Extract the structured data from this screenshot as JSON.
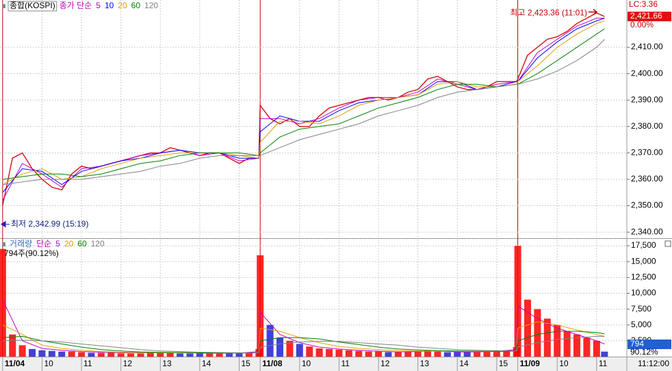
{
  "chart_data": [
    {
      "type": "line",
      "title": "종합(KOSPI)",
      "legend_label": "종가 단순",
      "x": [
        0,
        30,
        60,
        90,
        120,
        150,
        180,
        210,
        240,
        270,
        300,
        330,
        360,
        390,
        392,
        422,
        452,
        482,
        512,
        542,
        572,
        602,
        632,
        662,
        692,
        722,
        752,
        782,
        784,
        814,
        844,
        874,
        904,
        916
      ],
      "series": [
        {
          "name": "5",
          "color": "#c000c0",
          "values": [
            2352,
            2366,
            2362,
            2357,
            2364,
            2365,
            2367,
            2369,
            2370,
            2371,
            2369,
            2370,
            2367,
            2368,
            2383,
            2383,
            2381,
            2383,
            2387,
            2390,
            2391,
            2391,
            2393,
            2398,
            2396,
            2394,
            2396,
            2397,
            2397,
            2408,
            2413,
            2418,
            2421,
            2421
          ]
        },
        {
          "name": "10",
          "color": "#0000ff",
          "values": [
            2355,
            2364,
            2363,
            2358,
            2363,
            2365,
            2367,
            2368,
            2370,
            2371,
            2370,
            2370,
            2368,
            2368,
            2378,
            2384,
            2382,
            2382,
            2386,
            2389,
            2390,
            2391,
            2392,
            2397,
            2397,
            2394,
            2395,
            2397,
            2397,
            2406,
            2412,
            2417,
            2420,
            2421
          ]
        },
        {
          "name": "20",
          "color": "#e0a000",
          "values": [
            2358,
            2362,
            2364,
            2360,
            2361,
            2364,
            2366,
            2368,
            2369,
            2370,
            2370,
            2370,
            2369,
            2368,
            2374,
            2382,
            2382,
            2381,
            2384,
            2388,
            2390,
            2391,
            2392,
            2396,
            2397,
            2395,
            2395,
            2396,
            2397,
            2403,
            2410,
            2415,
            2419,
            2420
          ]
        },
        {
          "name": "60",
          "color": "#008000",
          "values": [
            2360,
            2361,
            2362,
            2362,
            2361,
            2362,
            2364,
            2366,
            2367,
            2369,
            2370,
            2370,
            2370,
            2369,
            2370,
            2376,
            2379,
            2380,
            2381,
            2384,
            2387,
            2389,
            2391,
            2394,
            2396,
            2396,
            2395,
            2396,
            2396,
            2400,
            2405,
            2410,
            2415,
            2417
          ]
        },
        {
          "name": "120",
          "color": "#808080",
          "values": [
            2358,
            2359,
            2360,
            2360,
            2360,
            2361,
            2362,
            2363,
            2365,
            2366,
            2368,
            2369,
            2369,
            2369,
            2369,
            2372,
            2375,
            2377,
            2379,
            2381,
            2384,
            2386,
            2388,
            2391,
            2393,
            2394,
            2395,
            2396,
            2396,
            2398,
            2401,
            2405,
            2410,
            2413
          ]
        }
      ],
      "price": {
        "color": "#d01010",
        "x": [
          0,
          15,
          30,
          45,
          60,
          75,
          90,
          105,
          120,
          135,
          150,
          165,
          180,
          195,
          210,
          225,
          240,
          255,
          270,
          285,
          300,
          315,
          330,
          345,
          360,
          375,
          390,
          392,
          407,
          422,
          437,
          452,
          467,
          482,
          497,
          512,
          527,
          542,
          557,
          572,
          587,
          602,
          617,
          632,
          647,
          662,
          677,
          692,
          707,
          722,
          737,
          752,
          767,
          782,
          784,
          799,
          814,
          829,
          844,
          859,
          874,
          889,
          904,
          916
        ],
        "values": [
          2350,
          2368,
          2370,
          2364,
          2360,
          2357,
          2356,
          2362,
          2365,
          2364,
          2365,
          2366,
          2367,
          2368,
          2369,
          2370,
          2370,
          2372,
          2371,
          2370,
          2369,
          2370,
          2370,
          2368,
          2366,
          2368,
          2368,
          2388,
          2383,
          2381,
          2383,
          2380,
          2380,
          2384,
          2387,
          2388,
          2389,
          2390,
          2391,
          2391,
          2390,
          2391,
          2393,
          2394,
          2398,
          2399,
          2397,
          2395,
          2394,
          2394,
          2395,
          2397,
          2397,
          2397,
          2398,
          2407,
          2410,
          2413,
          2414,
          2416,
          2419,
          2421,
          2423,
          2421.66
        ]
      },
      "ylim": [
        2337.7,
        2427.9
      ],
      "yticks": [
        {
          "value": 2340,
          "label": "2,340.00"
        },
        {
          "value": 2350,
          "label": "2,350.00"
        },
        {
          "value": 2360,
          "label": "2,360.00"
        },
        {
          "value": 2370,
          "label": "2,370.00"
        },
        {
          "value": 2380,
          "label": "2,380.00"
        },
        {
          "value": 2390,
          "label": "2,390.00"
        },
        {
          "value": 2400,
          "label": "2,400.00"
        },
        {
          "value": 2410,
          "label": "2,410.00"
        }
      ],
      "lc_label": "LC:3.36",
      "last": {
        "value": 2421.66,
        "label": "2,421.66"
      },
      "change_label": "0.00%",
      "high": {
        "value": 2423.36,
        "label": "최고 2,423.36 (11:01)"
      },
      "low": {
        "value": 2342.99,
        "label": "최저 2,342.99 (15:19)"
      },
      "grid": true
    },
    {
      "type": "bar",
      "title": "거래량",
      "legend_label": "단순",
      "up_color": "#ff0000",
      "down_color": "#2020d0",
      "values": [
        17000,
        3500,
        1800,
        1200,
        1000,
        900,
        800,
        800,
        700,
        600,
        600,
        600,
        500,
        500,
        500,
        600,
        600,
        700,
        500,
        500,
        500,
        500,
        500,
        500,
        600,
        700,
        1200,
        16000,
        5000,
        3000,
        2500,
        2000,
        1600,
        1300,
        1200,
        1100,
        1000,
        900,
        800,
        800,
        700,
        700,
        800,
        900,
        1000,
        800,
        700,
        700,
        700,
        800,
        800,
        900,
        1000,
        1500,
        17500,
        9000,
        7500,
        6000,
        5000,
        4000,
        3500,
        3000,
        2500,
        794
      ],
      "series": [
        {
          "name": "5",
          "color": "#c000c0",
          "values": [
            9000,
            2500,
            1300,
            1000,
            800,
            700,
            600,
            600,
            600,
            650,
            550,
            520,
            550,
            800,
            7000,
            3500,
            2200,
            1500,
            1200,
            1000,
            850,
            750,
            800,
            900,
            750,
            720,
            850,
            1100,
            8000,
            6000,
            4500,
            3500,
            2500,
            2000
          ]
        },
        {
          "name": "20",
          "color": "#e0a000",
          "values": [
            5000,
            3500,
            1800,
            1300,
            1000,
            800,
            700,
            650,
            600,
            620,
            580,
            540,
            540,
            620,
            4500,
            4000,
            3000,
            2200,
            1600,
            1300,
            1100,
            950,
            880,
            860,
            820,
            780,
            800,
            900,
            4500,
            5500,
            5000,
            4200,
            3500,
            3200
          ]
        },
        {
          "name": "60",
          "color": "#008000",
          "values": [
            3000,
            3200,
            2500,
            2000,
            1500,
            1100,
            900,
            750,
            680,
            640,
            610,
            580,
            560,
            590,
            2500,
            3000,
            3000,
            2800,
            2300,
            1900,
            1500,
            1200,
            1050,
            950,
            900,
            850,
            830,
            850,
            2500,
            3500,
            4000,
            4000,
            3800,
            3600
          ]
        },
        {
          "name": "120",
          "color": "#808080",
          "values": [
            2500,
            2600,
            2500,
            2300,
            2000,
            1700,
            1400,
            1100,
            900,
            800,
            700,
            650,
            600,
            600,
            1500,
            2000,
            2300,
            2400,
            2400,
            2200,
            2000,
            1800,
            1500,
            1300,
            1100,
            1000,
            950,
            900,
            1500,
            2200,
            2700,
            3000,
            3200,
            3200
          ]
        }
      ],
      "ylim": [
        0,
        18480
      ],
      "yticks": [
        {
          "value": 2500,
          "label": "2,500"
        },
        {
          "value": 5000,
          "label": "5,000"
        },
        {
          "value": 7500,
          "label": "7,500"
        },
        {
          "value": 10000,
          "label": "10,000"
        },
        {
          "value": 12500,
          "label": "12,500"
        },
        {
          "value": 15000,
          "label": "15,000"
        },
        {
          "value": 17500,
          "label": "17,500"
        }
      ],
      "xlim": [
        -4,
        950
      ],
      "xticks": [
        {
          "value": 0,
          "label": "11/04"
        },
        {
          "value": 60,
          "label": "10"
        },
        {
          "value": 120,
          "label": "11"
        },
        {
          "value": 180,
          "label": "12"
        },
        {
          "value": 240,
          "label": "13"
        },
        {
          "value": 300,
          "label": "14"
        },
        {
          "value": 360,
          "label": "15"
        },
        {
          "value": 392,
          "label": "11/08"
        },
        {
          "value": 452,
          "label": "10"
        },
        {
          "value": 512,
          "label": "11"
        },
        {
          "value": 572,
          "label": "12"
        },
        {
          "value": 632,
          "label": "13"
        },
        {
          "value": 692,
          "label": "14"
        },
        {
          "value": 752,
          "label": "15"
        },
        {
          "value": 784,
          "label": "11/09"
        },
        {
          "value": 844,
          "label": "10"
        },
        {
          "value": 904,
          "label": "11"
        }
      ],
      "info_label": "794주(90.12%)",
      "last": {
        "value": 794,
        "label": "794"
      },
      "ratio_label": "90.12%",
      "time_label": "11:12:00"
    }
  ]
}
